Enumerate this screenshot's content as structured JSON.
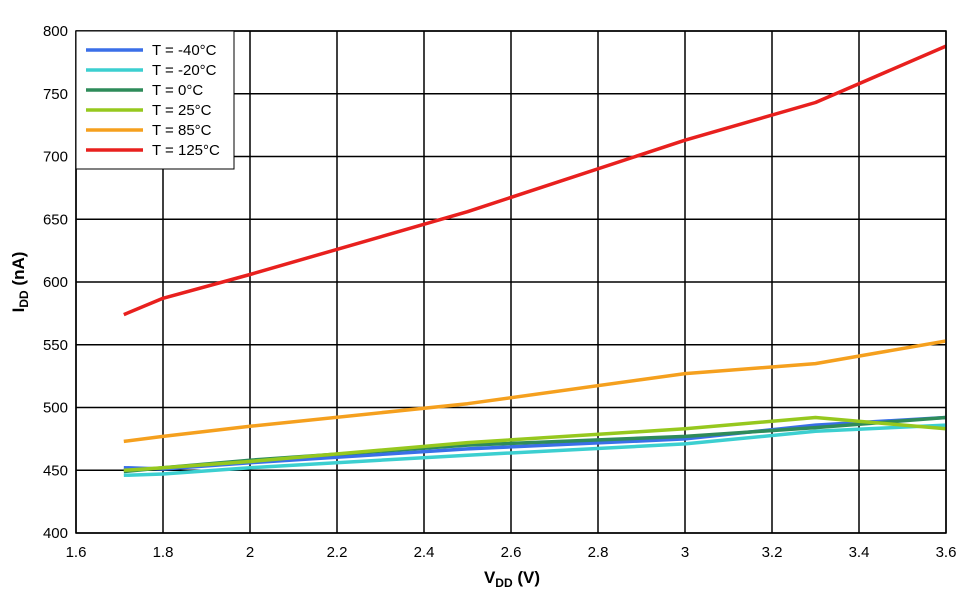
{
  "chart_data": {
    "type": "line",
    "title": "",
    "xlabel_main": "V",
    "xlabel_sub": "DD",
    "xlabel_unit": " (V)",
    "ylabel_main": "I",
    "ylabel_sub": "DD",
    "ylabel_unit": " (nA)",
    "xlim": [
      1.6,
      3.6
    ],
    "ylim": [
      400,
      800
    ],
    "xticks": [
      1.6,
      1.8,
      2,
      2.2,
      2.4,
      2.6,
      2.8,
      3,
      3.2,
      3.4,
      3.6
    ],
    "xtick_labels": [
      "1.6",
      "1.8",
      "2",
      "2.2",
      "2.4",
      "2.6",
      "2.8",
      "3",
      "3.2",
      "3.4",
      "3.6"
    ],
    "yticks": [
      400,
      450,
      500,
      550,
      600,
      650,
      700,
      750,
      800
    ],
    "ytick_labels": [
      "400",
      "450",
      "500",
      "550",
      "600",
      "650",
      "700",
      "750",
      "800"
    ],
    "grid": true,
    "legend_position": "top-left",
    "series": [
      {
        "name": "T = -40°C",
        "color": "#3a6fe8",
        "x": [
          1.71,
          1.8,
          2.0,
          2.5,
          3.0,
          3.3,
          3.6
        ],
        "values": [
          452,
          451,
          456,
          467,
          475,
          486,
          492
        ]
      },
      {
        "name": "T = -20°C",
        "color": "#3ccfd0",
        "x": [
          1.71,
          1.8,
          2.0,
          2.5,
          3.0,
          3.3,
          3.6
        ],
        "values": [
          446,
          447,
          452,
          462,
          471,
          481,
          486
        ]
      },
      {
        "name": "T = 0°C",
        "color": "#2e8b5a",
        "x": [
          1.71,
          1.8,
          2.0,
          2.5,
          3.0,
          3.3,
          3.6
        ],
        "values": [
          449,
          452,
          458,
          470,
          477,
          484,
          492
        ]
      },
      {
        "name": "T = 25°C",
        "color": "#96c81e",
        "x": [
          1.71,
          1.8,
          2.0,
          2.5,
          3.0,
          3.3,
          3.6
        ],
        "values": [
          450,
          452,
          457,
          472,
          483,
          492,
          483
        ]
      },
      {
        "name": "T = 85°C",
        "color": "#f5a01e",
        "x": [
          1.71,
          1.8,
          2.0,
          2.5,
          3.0,
          3.3,
          3.6
        ],
        "values": [
          473,
          477,
          485,
          503,
          527,
          535,
          553
        ]
      },
      {
        "name": "T = 125°C",
        "color": "#e8201e",
        "x": [
          1.71,
          1.8,
          2.0,
          2.5,
          3.0,
          3.3,
          3.6
        ],
        "values": [
          574,
          587,
          606,
          656,
          713,
          743,
          788
        ]
      }
    ]
  }
}
